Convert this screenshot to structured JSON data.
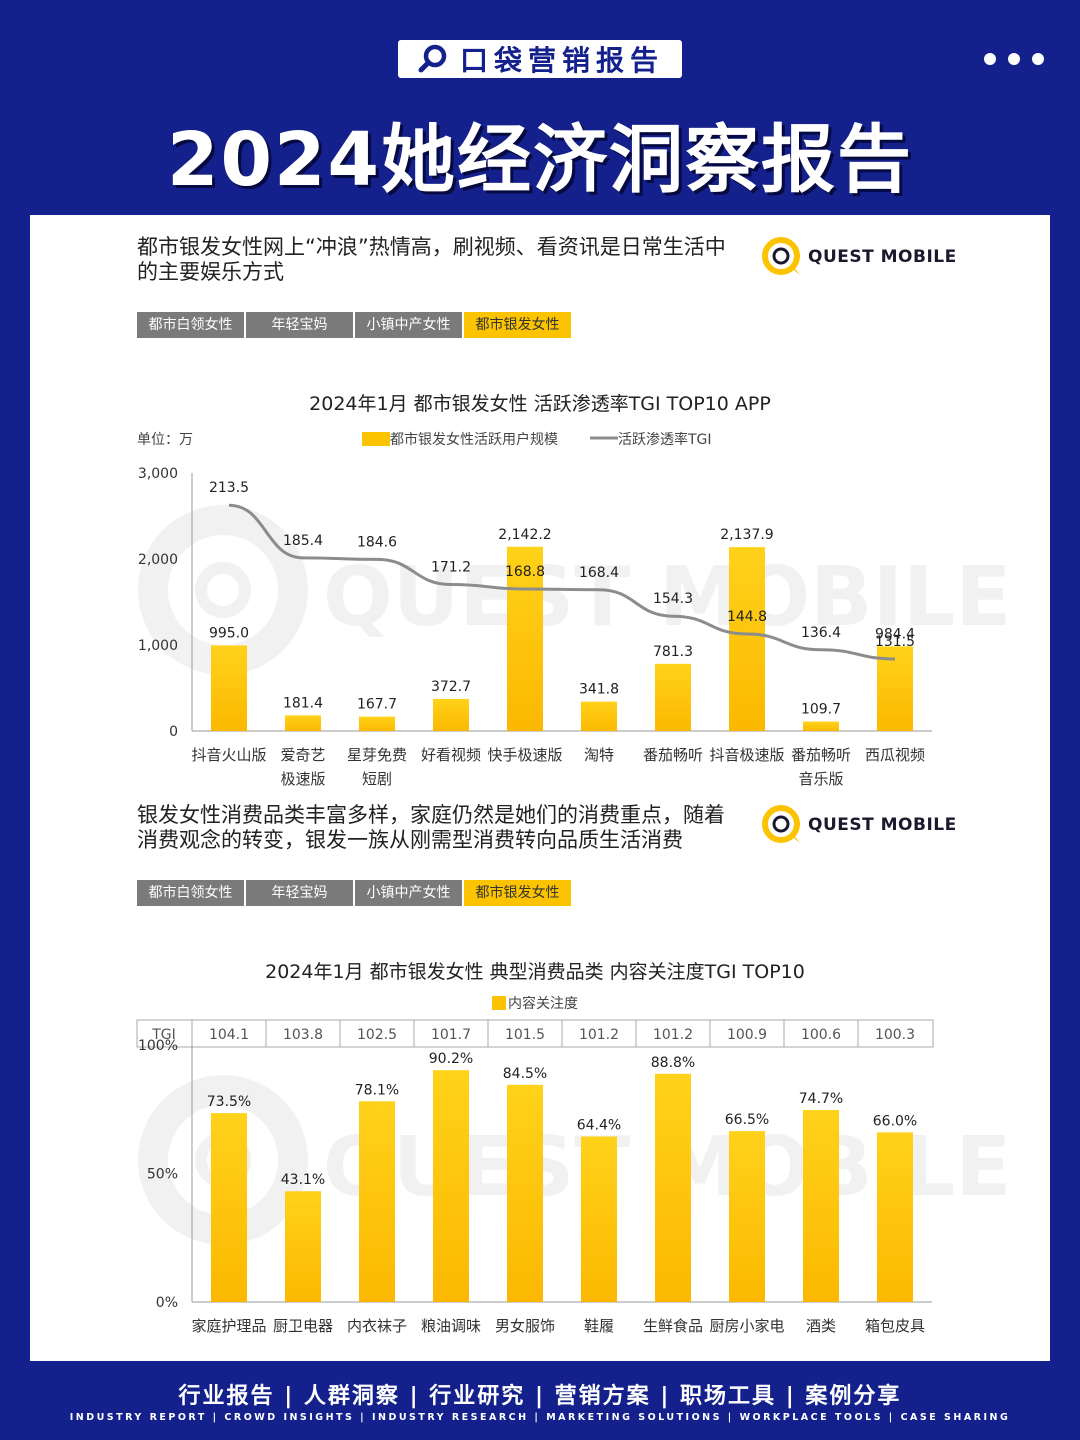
{
  "header": {
    "badge_text": "口袋营销报告",
    "title": "2024她经济洞察报告"
  },
  "brand": {
    "logo_text": "QUEST MOBILE",
    "watermark": "QUEST MOBILE"
  },
  "tabs": [
    "都市白领女性",
    "年轻宝妈",
    "小镇中产女性",
    "都市银发女性"
  ],
  "active_tab_index": 3,
  "section1": {
    "title_line1": "都市银发女性网上“冲浪”热情高，刷视频、看资讯是日常生活中",
    "title_line2": "的主要娱乐方式"
  },
  "section2": {
    "title_line1": "银发女性消费品类丰富多样，家庭仍然是她们的消费重点，随着",
    "title_line2": "消费观念的转变，银发一族从刚需型消费转向品质生活消费"
  },
  "chart_data": [
    {
      "type": "bar",
      "title": "2024年1月 都市银发女性 活跃渗透率TGI TOP10 APP",
      "unit_label": "单位：万",
      "categories": [
        [
          "抖音火山版"
        ],
        [
          "爱奇艺",
          "极速版"
        ],
        [
          "星芽免费",
          "短剧"
        ],
        [
          "好看视频"
        ],
        [
          "快手极速版"
        ],
        [
          "淘特"
        ],
        [
          "番茄畅听"
        ],
        [
          "抖音极速版"
        ],
        [
          "番茄畅听",
          "音乐版"
        ],
        [
          "西瓜视频"
        ]
      ],
      "series": [
        {
          "name": "都市银发女性活跃用户规模",
          "type": "bar",
          "color": "#fcc400",
          "values": [
            995.0,
            181.4,
            167.7,
            372.7,
            2142.2,
            341.8,
            781.3,
            2137.9,
            109.7,
            984.4
          ],
          "labels": [
            "995.0",
            "181.4",
            "167.7",
            "372.7",
            "2,142.2",
            "341.8",
            "781.3",
            "2,137.9",
            "109.7",
            "984.4"
          ]
        },
        {
          "name": "活跃渗透率TGI",
          "type": "line",
          "color": "#8c8c8c",
          "values": [
            213.5,
            185.4,
            184.6,
            171.2,
            168.8,
            168.4,
            154.3,
            144.8,
            136.4,
            131.5
          ],
          "labels": [
            "213.5",
            "185.4",
            "184.6",
            "171.2",
            "168.8",
            "168.4",
            "154.3",
            "144.8",
            "136.4",
            "131.5"
          ]
        }
      ],
      "yticks": [
        "0",
        "1,000",
        "2,000",
        "3,000"
      ],
      "ylim": [
        0,
        3000
      ],
      "legend_position": "top"
    },
    {
      "type": "bar",
      "title": "2024年1月 都市银发女性 典型消费品类 内容关注度TGI TOP10",
      "categories": [
        "家庭护理品",
        "厨卫电器",
        "内衣袜子",
        "粮油调味",
        "男女服饰",
        "鞋履",
        "生鲜食品",
        "厨房小家电",
        "酒类",
        "箱包皮具"
      ],
      "series": [
        {
          "name": "内容关注度",
          "color": "#fcc400",
          "values": [
            73.5,
            43.1,
            78.1,
            90.2,
            84.5,
            64.4,
            88.8,
            66.5,
            74.7,
            66.0
          ],
          "labels": [
            "73.5%",
            "43.1%",
            "78.1%",
            "90.2%",
            "84.5%",
            "64.4%",
            "88.8%",
            "66.5%",
            "74.7%",
            "66.0%"
          ]
        }
      ],
      "tgi_header": "TGI",
      "tgi": [
        "104.1",
        "103.8",
        "102.5",
        "101.7",
        "101.5",
        "101.2",
        "101.2",
        "100.9",
        "100.6",
        "100.3"
      ],
      "yticks": [
        "0%",
        "50%",
        "100%"
      ],
      "ylim": [
        0,
        100
      ],
      "legend_position": "top"
    }
  ],
  "footer": {
    "items_cn": [
      "行业报告",
      "人群洞察",
      "行业研究",
      "营销方案",
      "职场工具",
      "案例分享"
    ],
    "items_en": [
      "INDUSTRY REPORT",
      "CROWD INSIGHTS",
      "INDUSTRY RESEARCH",
      "MARKETING SOLUTIONS",
      "WORKPLACE TOOLS",
      "CASE SHARING"
    ]
  },
  "colors": {
    "navy": "#14218c",
    "accent": "#fcc400",
    "tab_gray": "#7a7a7a",
    "line_gray": "#8c8c8c"
  }
}
